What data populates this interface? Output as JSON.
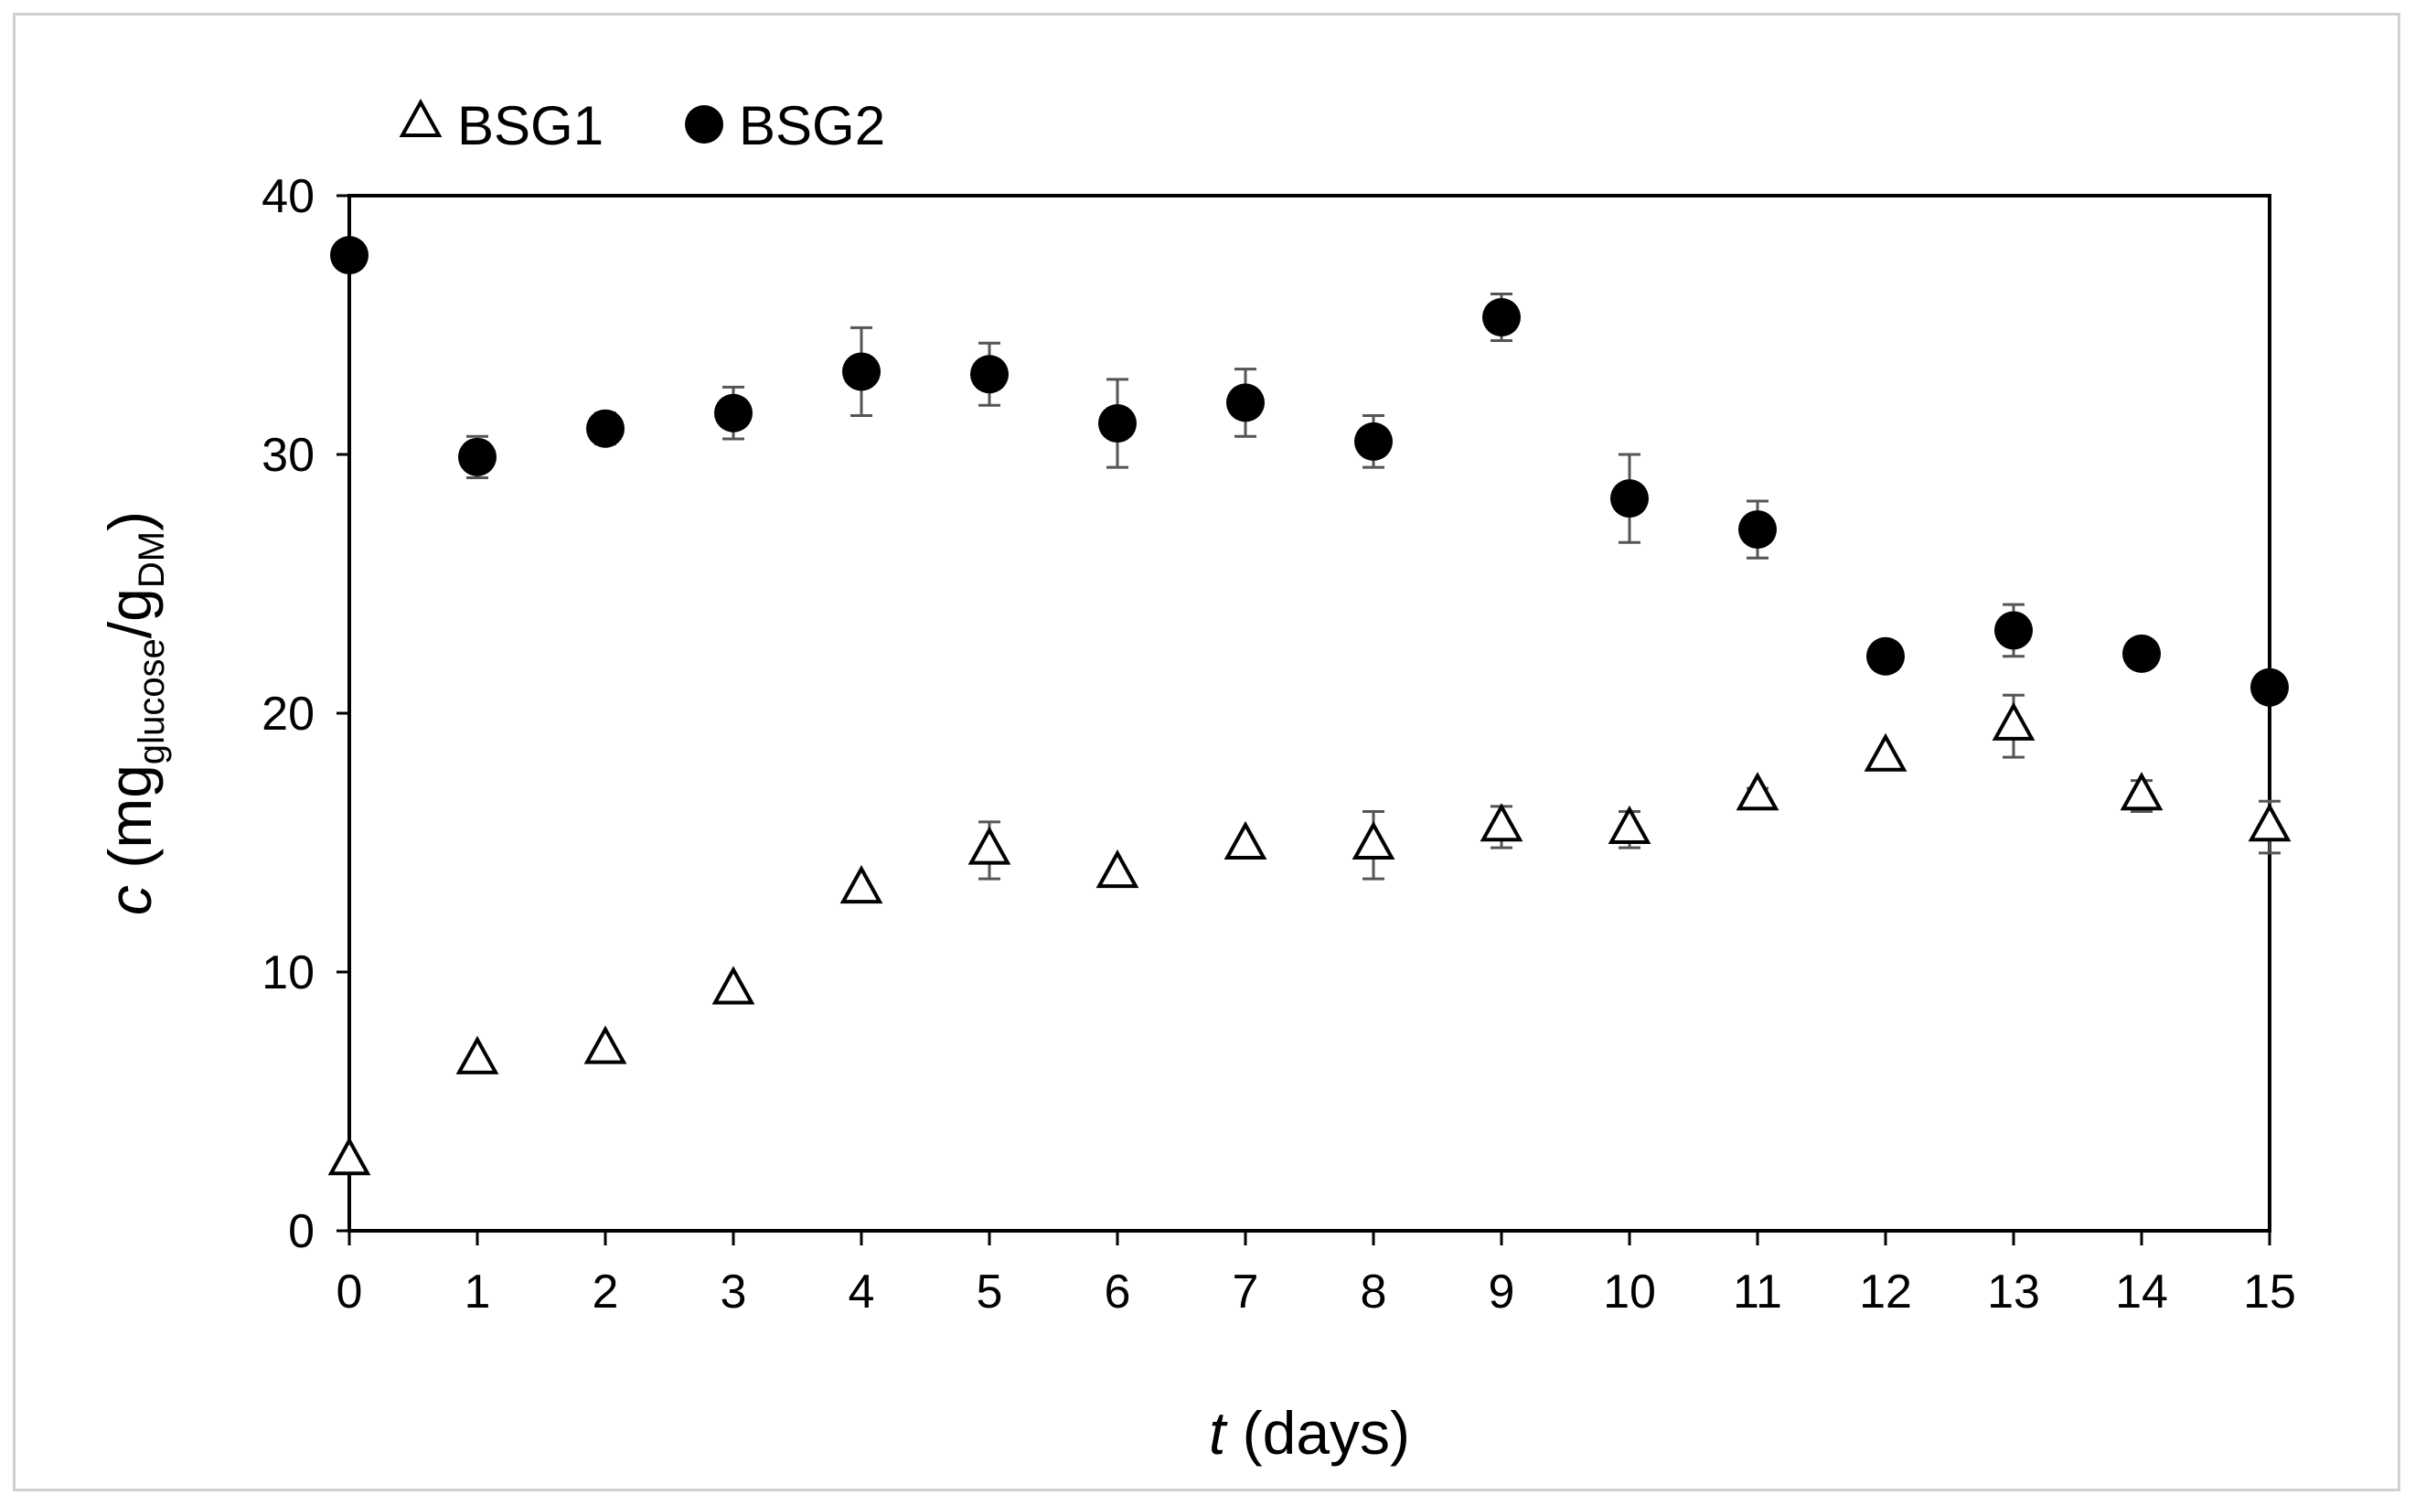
{
  "chart_data": {
    "type": "scatter",
    "title": "",
    "xlabel": {
      "symbol": "t",
      "rest": " (days)"
    },
    "ylabel": {
      "symbol": "c",
      "open": " (mg",
      "sub1": "glucose",
      "mid": "/g",
      "sub2": "DM",
      "close": ")"
    },
    "xlim": [
      0,
      15
    ],
    "ylim": [
      0,
      40
    ],
    "x_ticks": [
      0,
      1,
      2,
      3,
      4,
      5,
      6,
      7,
      8,
      9,
      10,
      11,
      12,
      13,
      14,
      15
    ],
    "y_ticks": [
      0,
      10,
      20,
      30,
      40
    ],
    "grid": false,
    "legend_position": "top-left",
    "series": [
      {
        "name": "BSG1",
        "marker": "open-triangle",
        "color": "#000000",
        "x": [
          0,
          1,
          2,
          3,
          4,
          5,
          6,
          7,
          8,
          9,
          10,
          11,
          12,
          13,
          14,
          15
        ],
        "y": [
          2.7,
          6.6,
          7.0,
          9.3,
          13.2,
          14.7,
          13.8,
          14.9,
          14.9,
          15.6,
          15.5,
          16.8,
          18.3,
          19.5,
          16.8,
          15.6
        ],
        "error": [
          0,
          0,
          0,
          0,
          0,
          1.1,
          0,
          0,
          1.3,
          0.8,
          0.7,
          0.3,
          0,
          1.2,
          0.6,
          1.0
        ]
      },
      {
        "name": "BSG2",
        "marker": "filled-circle",
        "color": "#000000",
        "x": [
          0,
          1,
          2,
          3,
          4,
          5,
          6,
          7,
          8,
          9,
          10,
          11,
          12,
          13,
          14,
          15
        ],
        "y": [
          37.7,
          29.9,
          31.0,
          31.6,
          33.2,
          33.1,
          31.2,
          32.0,
          30.5,
          35.3,
          28.3,
          27.1,
          22.2,
          23.2,
          22.3,
          21.0
        ],
        "error": [
          0,
          0.8,
          0.6,
          1.0,
          1.7,
          1.2,
          1.7,
          1.3,
          1.0,
          0.9,
          1.7,
          1.1,
          0,
          1.0,
          0,
          0
        ]
      }
    ]
  }
}
